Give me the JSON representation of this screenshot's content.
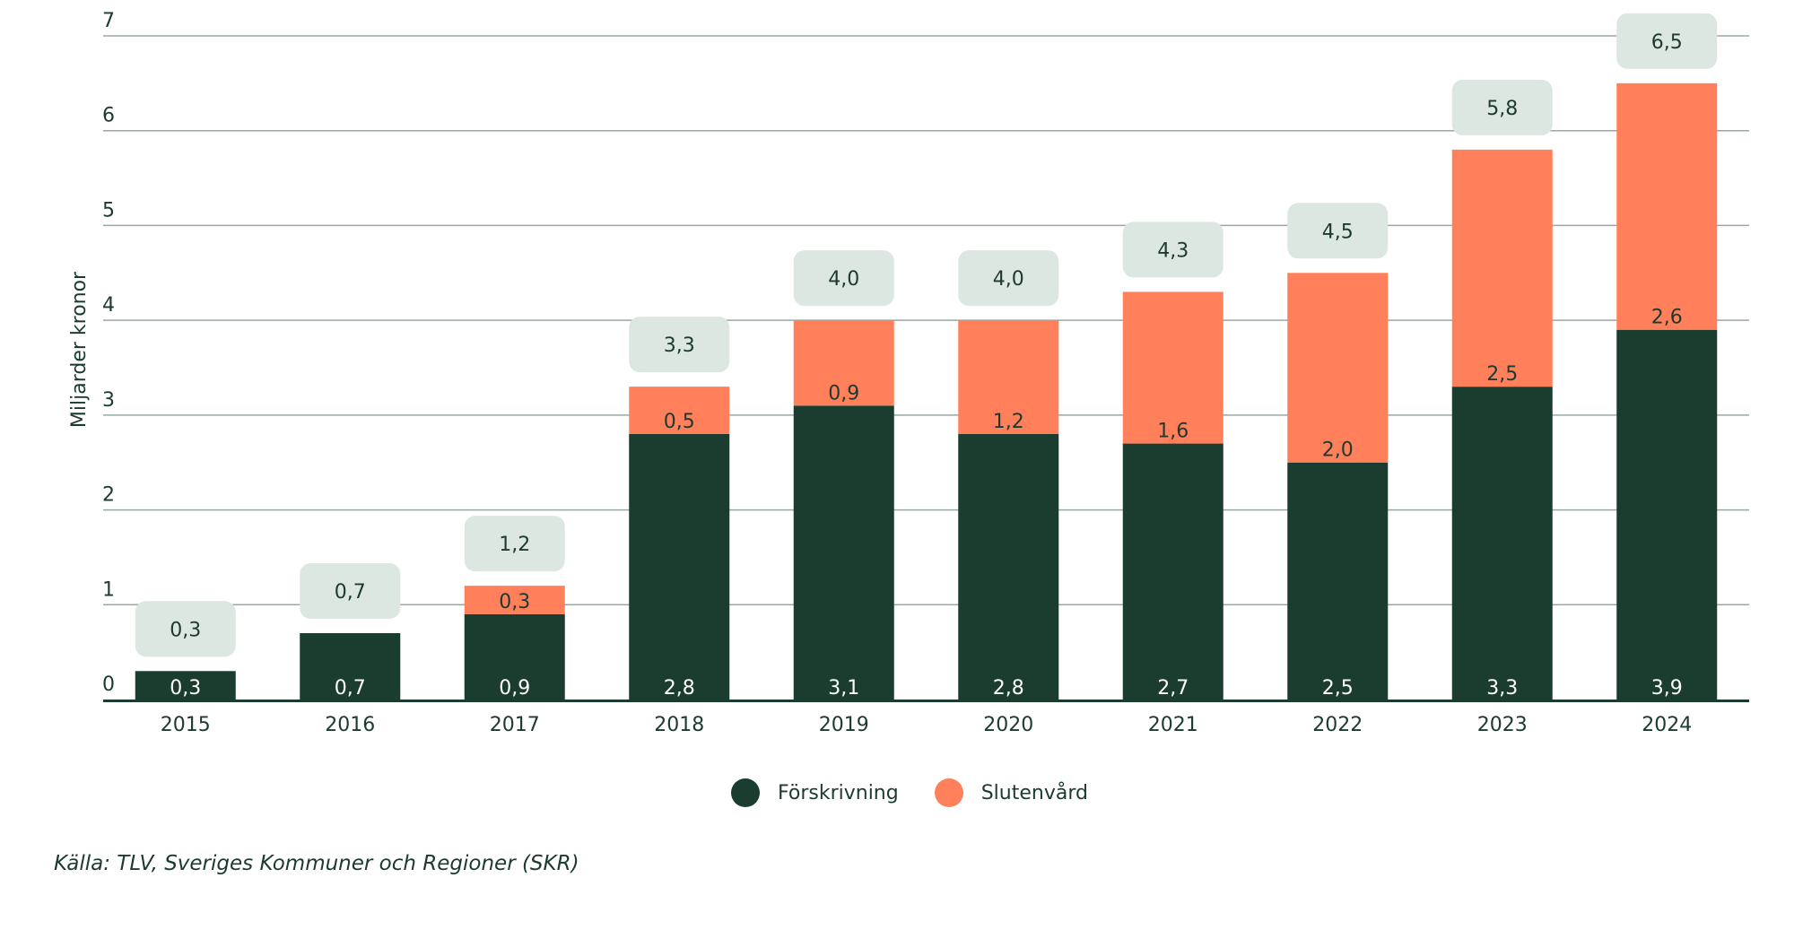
{
  "chart_data": {
    "type": "bar",
    "stacked": true,
    "categories": [
      "2015",
      "2016",
      "2017",
      "2018",
      "2019",
      "2020",
      "2021",
      "2022",
      "2023",
      "2024"
    ],
    "series": [
      {
        "name": "Förskrivning",
        "values": [
          0.3,
          0.7,
          0.9,
          2.8,
          3.1,
          2.8,
          2.7,
          2.5,
          3.3,
          3.9
        ],
        "labels": [
          "0,3",
          "0,7",
          "0,9",
          "2,8",
          "3,1",
          "2,8",
          "2,7",
          "2,5",
          "3,3",
          "3,9"
        ]
      },
      {
        "name": "Slutenvård",
        "values": [
          0,
          0,
          0.3,
          0.5,
          0.9,
          1.2,
          1.6,
          2.0,
          2.5,
          2.6
        ],
        "labels": [
          "",
          "",
          "0,3",
          "0,5",
          "0,9",
          "1,2",
          "1,6",
          "2,0",
          "2,5",
          "2,6"
        ]
      }
    ],
    "totals": [
      0.3,
      0.7,
      1.2,
      3.3,
      4.0,
      4.0,
      4.3,
      4.5,
      5.8,
      6.5
    ],
    "total_labels": [
      "0,3",
      "0,7",
      "1,2",
      "3,3",
      "4,0",
      "4,0",
      "4,3",
      "4,5",
      "5,8",
      "6,5"
    ],
    "ylabel": "Miljarder kronor",
    "xlabel": "",
    "ylim": [
      0,
      7
    ],
    "yticks": [
      0,
      1,
      2,
      3,
      4,
      5,
      6,
      7
    ],
    "ytick_labels": [
      "0",
      "1",
      "2",
      "3",
      "4",
      "5",
      "6",
      "7"
    ],
    "grid": true,
    "legend_position": "bottom-center"
  },
  "colors": {
    "forskrivning": "#1b3d30",
    "slutenvard": "#ff805a",
    "total_box": "#dde7e1",
    "grid": "#9aa8a1",
    "axis": "#1b3d30",
    "text": "#1c3a30"
  },
  "legend": {
    "forskrivning": "Förskrivning",
    "slutenvard": "Slutenvård"
  },
  "source": "Källa: TLV, Sveriges Kommuner och Regioner (SKR)"
}
